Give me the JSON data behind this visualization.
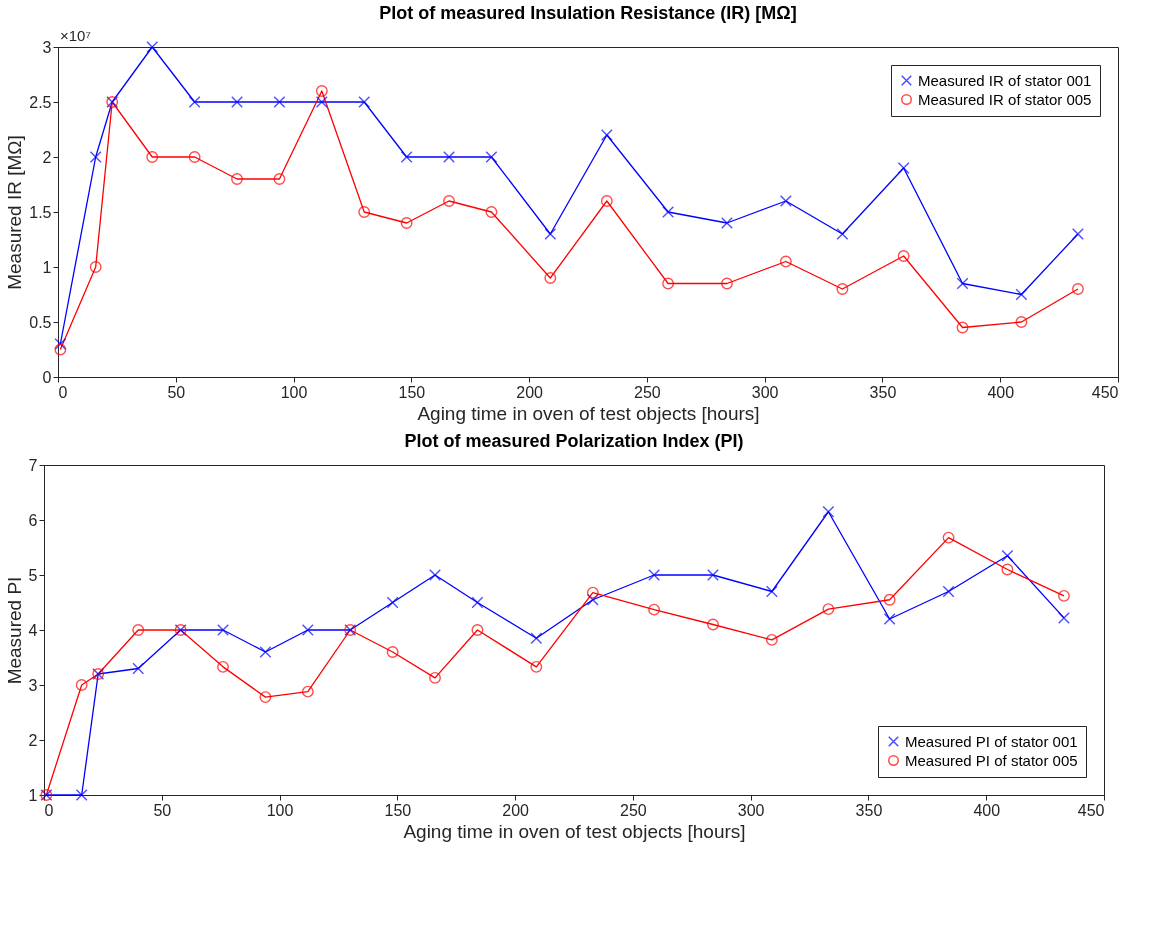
{
  "chart_data": [
    {
      "type": "line",
      "title": "Plot of measured Insulation Resistance (IR) [MΩ]",
      "xlabel": "Aging time in oven of test objects [hours]",
      "ylabel": "Measured IR [MΩ]",
      "x": [
        1,
        16,
        23,
        40,
        58,
        76,
        94,
        112,
        130,
        148,
        166,
        184,
        209,
        233,
        259,
        284,
        309,
        333,
        359,
        384,
        409,
        433
      ],
      "series": [
        {
          "name": "Measured IR of stator 001",
          "color": "#0000ff",
          "marker": "cross",
          "values": [
            0.3,
            2,
            2.5,
            3,
            2.5,
            2.5,
            2.5,
            2.5,
            2.5,
            2,
            2,
            2,
            1.3,
            2.2,
            1.5,
            1.4,
            1.6,
            1.3,
            1.9,
            0.85,
            0.75,
            1.3
          ]
        },
        {
          "name": "Measured IR of stator 005",
          "color": "#ff0000",
          "marker": "circle",
          "values": [
            0.25,
            1,
            2.5,
            2,
            2,
            1.8,
            1.8,
            2.6,
            1.5,
            1.4,
            1.6,
            1.5,
            0.9,
            1.6,
            0.85,
            0.85,
            1.05,
            0.8,
            1.1,
            0.45,
            0.5,
            0.8
          ]
        }
      ],
      "xlim": [
        0,
        450
      ],
      "xticks": [
        0,
        50,
        100,
        150,
        200,
        250,
        300,
        350,
        400,
        450
      ],
      "ylim": [
        0,
        3
      ],
      "yticks": [
        0,
        0.5,
        1,
        1.5,
        2,
        2.5,
        3
      ],
      "annotations": [
        "×10⁷"
      ],
      "legend": "top right",
      "line_style": "solid"
    },
    {
      "type": "line",
      "title": "Plot of measured Polarization Index (PI)",
      "xlabel": "Aging time in oven of test objects [hours]",
      "ylabel": "Measured PI",
      "x": [
        1,
        16,
        23,
        40,
        58,
        76,
        94,
        112,
        130,
        148,
        166,
        184,
        209,
        233,
        259,
        284,
        309,
        333,
        359,
        384,
        409,
        433
      ],
      "series": [
        {
          "name": "Measured PI of stator 001",
          "color": "#0000ff",
          "marker": "cross",
          "values": [
            1,
            1,
            3.2,
            3.3,
            4,
            4,
            3.6,
            4,
            4,
            4.5,
            5,
            4.5,
            3.85,
            4.55,
            5,
            5,
            4.7,
            6.15,
            4.2,
            4.7,
            5.35,
            4.22
          ]
        },
        {
          "name": "Measured PI of stator 005",
          "color": "#ff0000",
          "marker": "circle",
          "values": [
            1,
            3,
            3.2,
            4,
            4,
            3.33,
            2.78,
            2.88,
            4,
            3.6,
            3.13,
            4,
            3.33,
            4.68,
            4.37,
            4.1,
            3.82,
            4.38,
            4.55,
            5.68,
            5.1,
            4.62
          ]
        }
      ],
      "xlim": [
        0,
        450
      ],
      "xticks": [
        0,
        50,
        100,
        150,
        200,
        250,
        300,
        350,
        400,
        450
      ],
      "ylim": [
        1,
        7
      ],
      "yticks": [
        1,
        2,
        3,
        4,
        5,
        6,
        7
      ],
      "legend": "bottom right",
      "line_style": "solid"
    }
  ]
}
